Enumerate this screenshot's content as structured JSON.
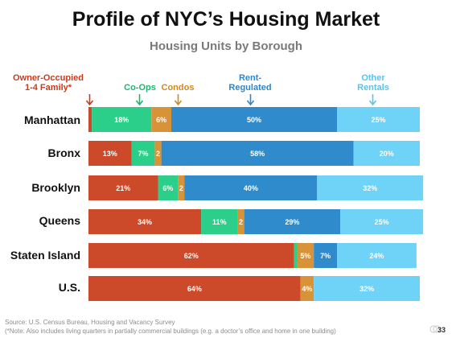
{
  "title": "Profile of NYC’s Housing Market",
  "subtitle": "Housing Units by Borough",
  "legend": {
    "owner": {
      "line1": "Owner-Occupied",
      "line2": "1-4 Family*"
    },
    "coops": {
      "line1": "Co-Ops"
    },
    "condos": {
      "line1": "Condos"
    },
    "rent_regulated": {
      "line1": "Rent-",
      "line2": "Regulated"
    },
    "other_rentals": {
      "line1": "Other",
      "line2": "Rentals"
    }
  },
  "colors": {
    "owner": "#cc4a2a",
    "coops": "#2ccf8a",
    "condos": "#d89238",
    "rent_regulated": "#2f8bcb",
    "other_rentals": "#6ed3f7",
    "owner_label": "#cc3a1a",
    "coops_label": "#18b870",
    "condos_label": "#d08a20",
    "rent_label": "#2f86c8",
    "other_label": "#55c4ef"
  },
  "chart_data": {
    "type": "bar",
    "orientation": "horizontal",
    "stacked": true,
    "categories": [
      "Manhattan",
      "Bronx",
      "Brooklyn",
      "Queens",
      "Staten Island",
      "U.S."
    ],
    "series": [
      {
        "name": "Owner-Occupied 1-4 Family*",
        "values": [
          1,
          13,
          21,
          34,
          62,
          64
        ],
        "labels": [
          "1%",
          "13%",
          "21%",
          "34%",
          "62%",
          "64%"
        ]
      },
      {
        "name": "Co-Ops",
        "values": [
          18,
          7,
          6,
          11,
          1,
          0
        ],
        "labels": [
          "18%",
          "7%",
          "6%",
          "11%",
          "",
          ""
        ]
      },
      {
        "name": "Condos",
        "values": [
          6,
          2,
          2,
          2,
          5,
          4
        ],
        "labels": [
          "6%",
          "2",
          "2",
          "2",
          "5%",
          "4%"
        ]
      },
      {
        "name": "Rent-Regulated",
        "values": [
          50,
          58,
          40,
          29,
          7,
          0
        ],
        "labels": [
          "50%",
          "58%",
          "40%",
          "29%",
          "7%",
          ""
        ]
      },
      {
        "name": "Other Rentals",
        "values": [
          25,
          20,
          32,
          25,
          24,
          32
        ],
        "labels": [
          "25%",
          "20%",
          "32%",
          "25%",
          "24%",
          "32%"
        ]
      }
    ],
    "xlim": [
      0,
      100
    ],
    "grid": false,
    "legend": "top"
  },
  "footer": {
    "source": "Source: U.S. Census Bureau, Housing and Vacancy Survey",
    "note": "(*Note: Also includes living quarters in partially commercial buildings (e.g. a doctor’s office and home in one building)"
  },
  "page_number": "33"
}
